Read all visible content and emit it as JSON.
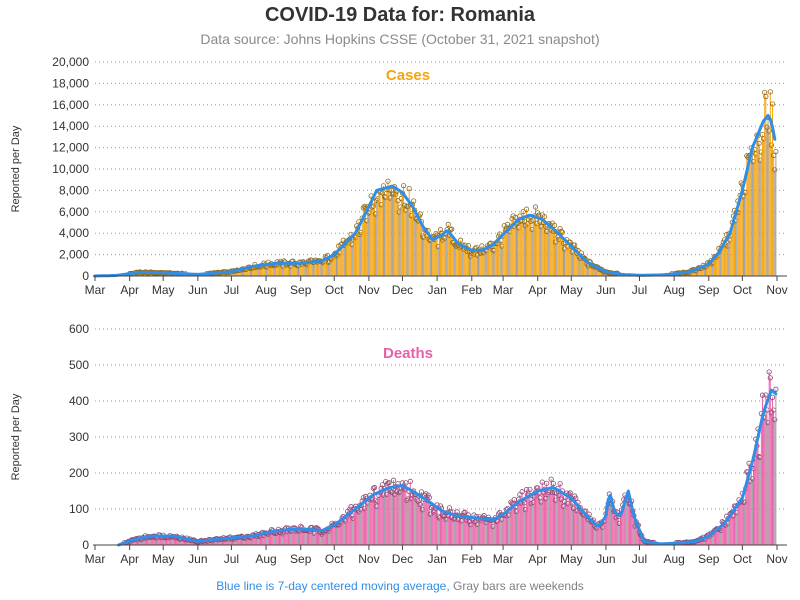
{
  "title": "COVID-19 Data for: Romania",
  "subtitle": "Data source: Johns Hopkins CSSE (October 31, 2021 snapshot)",
  "footer": {
    "blue_note": "Blue line is 7-day centered moving average,",
    "gray_note": "Gray bars are weekends"
  },
  "colors": {
    "cases_bar": "#f5a30f",
    "deaths_bar": "#e95fa8",
    "moving_average": "#2f8ee8",
    "weekend_bar": "#9a9a9a",
    "cases_label": "#f5a30f",
    "deaths_label": "#e95fa8"
  },
  "chart_data": [
    {
      "type": "bar",
      "panel_label": "Cases",
      "ylabel": "Reported per Day",
      "ylim": [
        0,
        20000
      ],
      "yticks": [
        "0",
        "2,000",
        "4,000",
        "6,000",
        "8,000",
        "10,000",
        "12,000",
        "14,000",
        "16,000",
        "18,000",
        "20,000"
      ],
      "x_tick_labels": [
        "Mar",
        "Apr",
        "May",
        "Jun",
        "Jul",
        "Aug",
        "Sep",
        "Oct",
        "Nov",
        "Dec",
        "Jan",
        "Feb",
        "Mar",
        "Apr",
        "May",
        "Jun",
        "Jul",
        "Aug",
        "Sep",
        "Oct",
        "Nov"
      ],
      "x_tick_dates": [
        "2020-03-01",
        "2020-04-01",
        "2020-05-01",
        "2020-06-01",
        "2020-07-01",
        "2020-08-01",
        "2020-09-01",
        "2020-10-01",
        "2020-11-01",
        "2020-12-01",
        "2021-01-01",
        "2021-02-01",
        "2021-03-01",
        "2021-04-01",
        "2021-05-01",
        "2021-06-01",
        "2021-07-01",
        "2021-08-01",
        "2021-09-01",
        "2021-10-01",
        "2021-11-01"
      ],
      "grid": "horizontal dotted",
      "moving_average_anchors": [
        [
          "2020-03-01",
          0
        ],
        [
          "2020-03-20",
          50
        ],
        [
          "2020-04-10",
          350
        ],
        [
          "2020-05-01",
          300
        ],
        [
          "2020-06-01",
          150
        ],
        [
          "2020-07-01",
          400
        ],
        [
          "2020-07-20",
          900
        ],
        [
          "2020-08-10",
          1200
        ],
        [
          "2020-09-01",
          1200
        ],
        [
          "2020-09-20",
          1400
        ],
        [
          "2020-10-01",
          2000
        ],
        [
          "2020-10-20",
          4000
        ],
        [
          "2020-11-01",
          6500
        ],
        [
          "2020-11-08",
          8000
        ],
        [
          "2020-11-15",
          8200
        ],
        [
          "2020-11-22",
          8400
        ],
        [
          "2020-12-01",
          7800
        ],
        [
          "2020-12-10",
          6500
        ],
        [
          "2020-12-20",
          4500
        ],
        [
          "2020-12-28",
          3400
        ],
        [
          "2021-01-05",
          3800
        ],
        [
          "2021-01-10",
          4300
        ],
        [
          "2021-01-20",
          3000
        ],
        [
          "2021-02-01",
          2400
        ],
        [
          "2021-02-10",
          2400
        ],
        [
          "2021-02-20",
          2900
        ],
        [
          "2021-03-01",
          3900
        ],
        [
          "2021-03-15",
          5300
        ],
        [
          "2021-03-25",
          5700
        ],
        [
          "2021-04-05",
          5300
        ],
        [
          "2021-04-15",
          4400
        ],
        [
          "2021-05-01",
          2800
        ],
        [
          "2021-05-15",
          1300
        ],
        [
          "2021-06-01",
          400
        ],
        [
          "2021-06-15",
          150
        ],
        [
          "2021-07-01",
          70
        ],
        [
          "2021-07-20",
          100
        ],
        [
          "2021-08-01",
          200
        ],
        [
          "2021-08-15",
          400
        ],
        [
          "2021-09-01",
          1100
        ],
        [
          "2021-09-10",
          2200
        ],
        [
          "2021-09-20",
          4000
        ],
        [
          "2021-10-01",
          8000
        ],
        [
          "2021-10-10",
          12000
        ],
        [
          "2021-10-20",
          14500
        ],
        [
          "2021-10-24",
          15000
        ],
        [
          "2021-10-27",
          14500
        ],
        [
          "2021-10-31",
          12200
        ]
      ]
    },
    {
      "type": "bar",
      "panel_label": "Deaths",
      "ylabel": "Reported per Day",
      "ylim": [
        0,
        600
      ],
      "yticks": [
        "0",
        "100",
        "200",
        "300",
        "400",
        "500",
        "600"
      ],
      "x_tick_labels": [
        "Mar",
        "Apr",
        "May",
        "Jun",
        "Jul",
        "Aug",
        "Sep",
        "Oct",
        "Nov",
        "Dec",
        "Jan",
        "Feb",
        "Mar",
        "Apr",
        "May",
        "Jun",
        "Jul",
        "Aug",
        "Sep",
        "Oct",
        "Nov"
      ],
      "x_tick_dates": [
        "2020-03-01",
        "2020-04-01",
        "2020-05-01",
        "2020-06-01",
        "2020-07-01",
        "2020-08-01",
        "2020-09-01",
        "2020-10-01",
        "2020-11-01",
        "2020-12-01",
        "2021-01-01",
        "2021-02-01",
        "2021-03-01",
        "2021-04-01",
        "2021-05-01",
        "2021-06-01",
        "2021-07-01",
        "2021-08-01",
        "2021-09-01",
        "2021-10-01",
        "2021-11-01"
      ],
      "grid": "horizontal dotted",
      "moving_average_anchors": [
        [
          "2020-03-22",
          0
        ],
        [
          "2020-04-05",
          15
        ],
        [
          "2020-04-20",
          25
        ],
        [
          "2020-05-10",
          25
        ],
        [
          "2020-06-01",
          10
        ],
        [
          "2020-07-01",
          20
        ],
        [
          "2020-07-20",
          25
        ],
        [
          "2020-08-10",
          40
        ],
        [
          "2020-09-01",
          45
        ],
        [
          "2020-09-20",
          40
        ],
        [
          "2020-10-01",
          55
        ],
        [
          "2020-10-20",
          100
        ],
        [
          "2020-11-05",
          140
        ],
        [
          "2020-11-20",
          160
        ],
        [
          "2020-12-01",
          165
        ],
        [
          "2020-12-10",
          150
        ],
        [
          "2020-12-25",
          120
        ],
        [
          "2021-01-05",
          95
        ],
        [
          "2021-01-20",
          80
        ],
        [
          "2021-02-05",
          75
        ],
        [
          "2021-02-20",
          70
        ],
        [
          "2021-03-01",
          85
        ],
        [
          "2021-03-15",
          120
        ],
        [
          "2021-04-01",
          150
        ],
        [
          "2021-04-15",
          160
        ],
        [
          "2021-05-01",
          130
        ],
        [
          "2021-05-15",
          80
        ],
        [
          "2021-05-25",
          50
        ],
        [
          "2021-06-01",
          80
        ],
        [
          "2021-06-04",
          150
        ],
        [
          "2021-06-09",
          90
        ],
        [
          "2021-06-14",
          80
        ],
        [
          "2021-06-21",
          150
        ],
        [
          "2021-06-26",
          80
        ],
        [
          "2021-07-05",
          10
        ],
        [
          "2021-07-20",
          3
        ],
        [
          "2021-08-01",
          5
        ],
        [
          "2021-08-20",
          10
        ],
        [
          "2021-09-01",
          25
        ],
        [
          "2021-09-15",
          60
        ],
        [
          "2021-10-01",
          130
        ],
        [
          "2021-10-10",
          230
        ],
        [
          "2021-10-20",
          370
        ],
        [
          "2021-10-27",
          430
        ],
        [
          "2021-10-31",
          420
        ]
      ]
    }
  ]
}
